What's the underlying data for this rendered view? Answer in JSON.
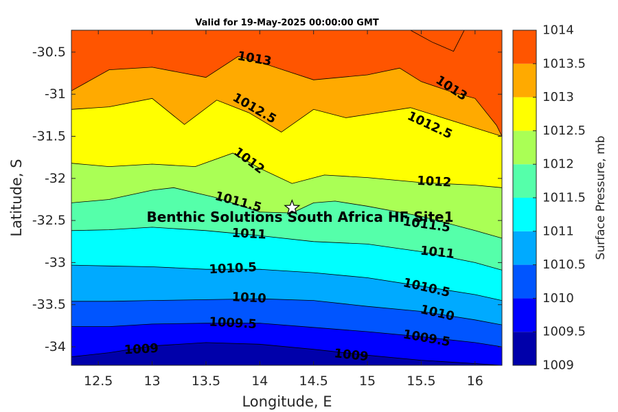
{
  "chart_data": {
    "type": "contour",
    "title": "Valid for 19-May-2025 00:00:00 GMT",
    "xlabel": "Longitude, E",
    "ylabel": "Latitude, S",
    "colorbar_label": "Surface Pressure, mb",
    "xlim": [
      12.25,
      16.25
    ],
    "ylim": [
      -34.22,
      -30.24
    ],
    "xticks": [
      12.5,
      13,
      13.5,
      14,
      14.5,
      15,
      15.5,
      16
    ],
    "xtick_labels": [
      "12.5",
      "13",
      "13.5",
      "14",
      "14.5",
      "15",
      "15.5",
      "16"
    ],
    "yticks": [
      -30.5,
      -31,
      -31.5,
      -32,
      -32.5,
      -33,
      -33.5,
      -34
    ],
    "ytick_labels": [
      "-30.5",
      "-31",
      "-31.5",
      "-32",
      "-32.5",
      "-33",
      "-33.5",
      "-34"
    ],
    "levels": [
      1009,
      1009.5,
      1010,
      1010.5,
      1011,
      1011.5,
      1012,
      1012.5,
      1013,
      1013.5,
      1014
    ],
    "colorbar_tick_labels": [
      "1009",
      "1009.5",
      "1010",
      "1010.5",
      "1011",
      "1011.5",
      "1012",
      "1012.5",
      "1013",
      "1013.5",
      "1014"
    ],
    "band_colors": [
      "#0000aa",
      "#0000ff",
      "#0055ff",
      "#00aaff",
      "#00ffff",
      "#55ffaa",
      "#aaff55",
      "#ffff00",
      "#ffaa00",
      "#ff5500"
    ],
    "isobars": [
      {
        "level": 1009,
        "x": [
          12.25,
          12.6,
          13.0,
          13.5,
          14.0,
          14.5,
          15.0,
          15.5,
          16.0,
          16.25
        ],
        "y": [
          -34.12,
          -34.07,
          -33.99,
          -33.95,
          -33.97,
          -34.03,
          -34.1,
          -34.16,
          -34.2,
          -34.22
        ]
      },
      {
        "level": 1009.5,
        "x": [
          12.25,
          12.6,
          13.0,
          13.5,
          14.0,
          14.5,
          15.0,
          15.5,
          16.0,
          16.25
        ],
        "y": [
          -33.76,
          -33.76,
          -33.73,
          -33.72,
          -33.72,
          -33.77,
          -33.82,
          -33.88,
          -33.95,
          -34.0
        ]
      },
      {
        "level": 1010,
        "x": [
          12.25,
          12.6,
          13.0,
          13.5,
          14.0,
          14.5,
          15.0,
          15.5,
          16.0,
          16.25
        ],
        "y": [
          -33.46,
          -33.46,
          -33.45,
          -33.44,
          -33.43,
          -33.45,
          -33.52,
          -33.58,
          -33.68,
          -33.74
        ]
      },
      {
        "level": 1010.5,
        "x": [
          12.25,
          12.6,
          13.0,
          13.5,
          14.0,
          14.5,
          15.0,
          15.5,
          16.0,
          16.25
        ],
        "y": [
          -33.03,
          -33.04,
          -33.05,
          -33.08,
          -33.08,
          -33.12,
          -33.18,
          -33.28,
          -33.38,
          -33.45
        ]
      },
      {
        "level": 1011,
        "x": [
          12.25,
          12.6,
          13.0,
          13.5,
          14.0,
          14.5,
          15.0,
          15.5,
          16.0,
          16.25
        ],
        "y": [
          -32.62,
          -32.61,
          -32.58,
          -32.62,
          -32.68,
          -32.75,
          -32.78,
          -32.87,
          -33.0,
          -33.09
        ]
      },
      {
        "level": 1011.5,
        "x": [
          12.25,
          12.6,
          13.0,
          13.2,
          13.6,
          14.0,
          14.3,
          14.5,
          14.7,
          15.0,
          15.5,
          16.0,
          16.25
        ],
        "y": [
          -32.29,
          -32.25,
          -32.14,
          -32.11,
          -32.23,
          -32.4,
          -32.41,
          -32.29,
          -32.27,
          -32.33,
          -32.45,
          -32.62,
          -32.71
        ]
      },
      {
        "level": 1012,
        "x": [
          12.25,
          12.6,
          13.0,
          13.4,
          13.75,
          14.0,
          14.3,
          14.6,
          15.0,
          15.5,
          16.0,
          16.25
        ],
        "y": [
          -31.82,
          -31.86,
          -31.83,
          -31.86,
          -31.7,
          -31.88,
          -32.06,
          -31.96,
          -31.99,
          -32.05,
          -32.08,
          -32.11
        ]
      },
      {
        "level": 1012.5,
        "x": [
          12.25,
          12.6,
          13.0,
          13.3,
          13.6,
          13.9,
          14.2,
          14.5,
          14.8,
          15.0,
          15.4,
          16.0,
          16.25
        ],
        "y": [
          -31.18,
          -31.15,
          -31.05,
          -31.36,
          -31.07,
          -31.22,
          -31.45,
          -31.18,
          -31.28,
          -31.24,
          -31.16,
          -31.4,
          -31.5
        ]
      },
      {
        "level": 1013,
        "x": [
          12.25,
          12.6,
          13.0,
          13.5,
          13.8,
          14.0,
          14.5,
          15.0,
          15.3,
          15.5,
          15.8,
          16.0,
          16.2,
          16.25
        ],
        "y": [
          -30.96,
          -30.71,
          -30.68,
          -30.8,
          -30.55,
          -30.62,
          -30.83,
          -30.77,
          -30.69,
          -30.85,
          -30.98,
          -31.05,
          -31.37,
          -31.5
        ]
      },
      {
        "level": 1013.5,
        "x": [
          15.4,
          15.6,
          15.8,
          15.9
        ],
        "y": [
          -30.24,
          -30.38,
          -30.49,
          -30.24
        ]
      }
    ],
    "contour_labels": [
      {
        "text": "1009",
        "x": 12.9,
        "y": -34.03,
        "angle": -3
      },
      {
        "text": "1009",
        "x": 14.85,
        "y": -34.1,
        "angle": 6
      },
      {
        "text": "1009.5",
        "x": 13.75,
        "y": -33.72,
        "angle": 3
      },
      {
        "text": "1009.5",
        "x": 15.55,
        "y": -33.9,
        "angle": 10
      },
      {
        "text": "1010",
        "x": 13.9,
        "y": -33.42,
        "angle": 3
      },
      {
        "text": "1010",
        "x": 15.65,
        "y": -33.6,
        "angle": 13
      },
      {
        "text": "1010.5",
        "x": 13.75,
        "y": -33.07,
        "angle": -3
      },
      {
        "text": "1010.5",
        "x": 15.55,
        "y": -33.3,
        "angle": 13
      },
      {
        "text": "1011",
        "x": 13.9,
        "y": -32.66,
        "angle": 3
      },
      {
        "text": "1011",
        "x": 15.65,
        "y": -32.88,
        "angle": 6
      },
      {
        "text": "1011.5",
        "x": 13.8,
        "y": -32.28,
        "angle": 15
      },
      {
        "text": "1011.5",
        "x": 15.55,
        "y": -32.55,
        "angle": 8
      },
      {
        "text": "1012",
        "x": 13.9,
        "y": -31.79,
        "angle": 37
      },
      {
        "text": "1012",
        "x": 15.62,
        "y": -32.04,
        "angle": 3
      },
      {
        "text": "1012.5",
        "x": 13.95,
        "y": -31.17,
        "angle": 30
      },
      {
        "text": "1012.5",
        "x": 15.58,
        "y": -31.37,
        "angle": 25
      },
      {
        "text": "1013",
        "x": 13.95,
        "y": -30.58,
        "angle": 10
      },
      {
        "text": "1013",
        "x": 15.78,
        "y": -30.93,
        "angle": 33
      }
    ],
    "marker": {
      "label": "Benthic Solutions South Africa HF Site1",
      "lon": 14.3,
      "lat": -32.35,
      "symbol": "star"
    }
  }
}
